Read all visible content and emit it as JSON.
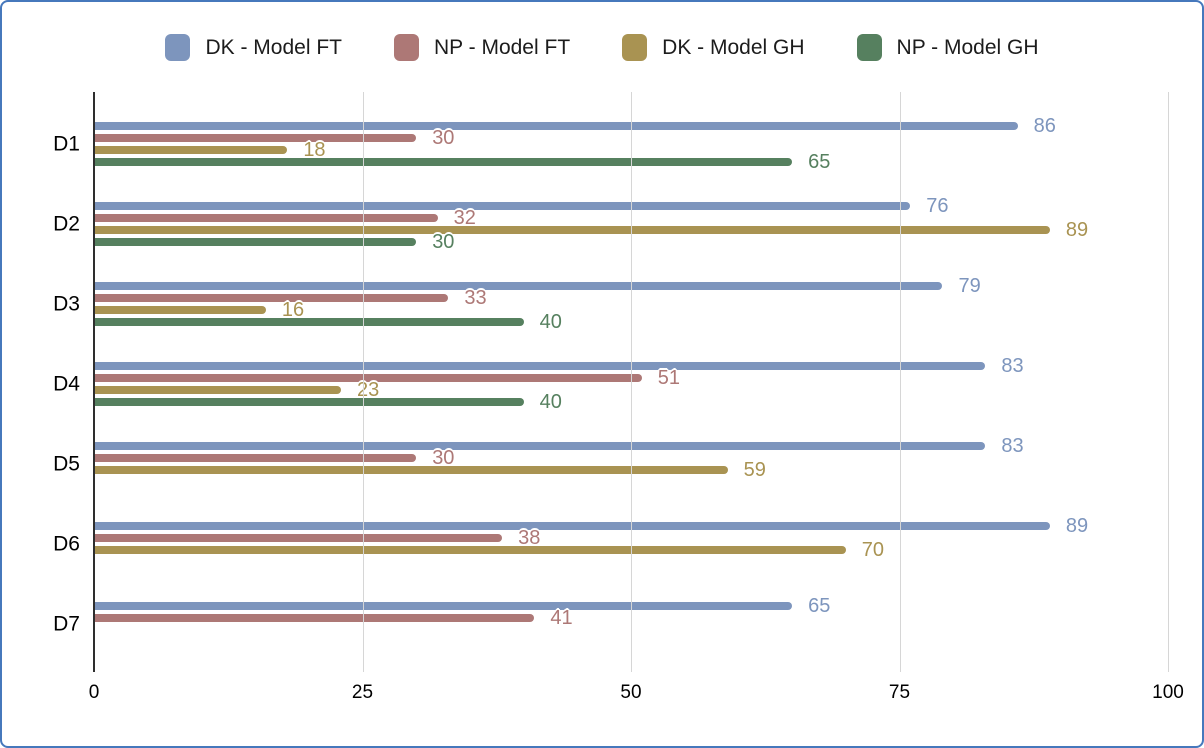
{
  "chart_data": {
    "type": "bar",
    "orientation": "horizontal",
    "title": "",
    "xlabel": "",
    "ylabel": "",
    "categories": [
      "D1",
      "D2",
      "D3",
      "D4",
      "D5",
      "D6",
      "D7"
    ],
    "series": [
      {
        "name": "DK - Model FT",
        "color": "#7d95bd",
        "values": [
          86,
          76,
          79,
          83,
          83,
          89,
          65
        ]
      },
      {
        "name": "NP - Model FT",
        "color": "#ad7876",
        "values": [
          30,
          32,
          33,
          51,
          30,
          38,
          41
        ]
      },
      {
        "name": "DK - Model GH",
        "color": "#a99352",
        "values": [
          18,
          89,
          16,
          23,
          59,
          70,
          null
        ]
      },
      {
        "name": "NP - Model GH",
        "color": "#56805f",
        "values": [
          65,
          30,
          40,
          40,
          null,
          null,
          null
        ]
      }
    ],
    "xlim": [
      0,
      100
    ],
    "x_ticks": [
      0,
      25,
      50,
      75,
      100
    ],
    "grid": "vertical-only",
    "legend_position": "top-center",
    "data_labels": "end-of-bar, colored per series with white halo"
  },
  "colors": {
    "frame_border": "#4678bc",
    "axis_line": "#2e2e2e",
    "gridline": "#d6d6d6",
    "legend_text": "#1c1c1c",
    "tick_text": "#000000",
    "background": "#ffffff"
  }
}
